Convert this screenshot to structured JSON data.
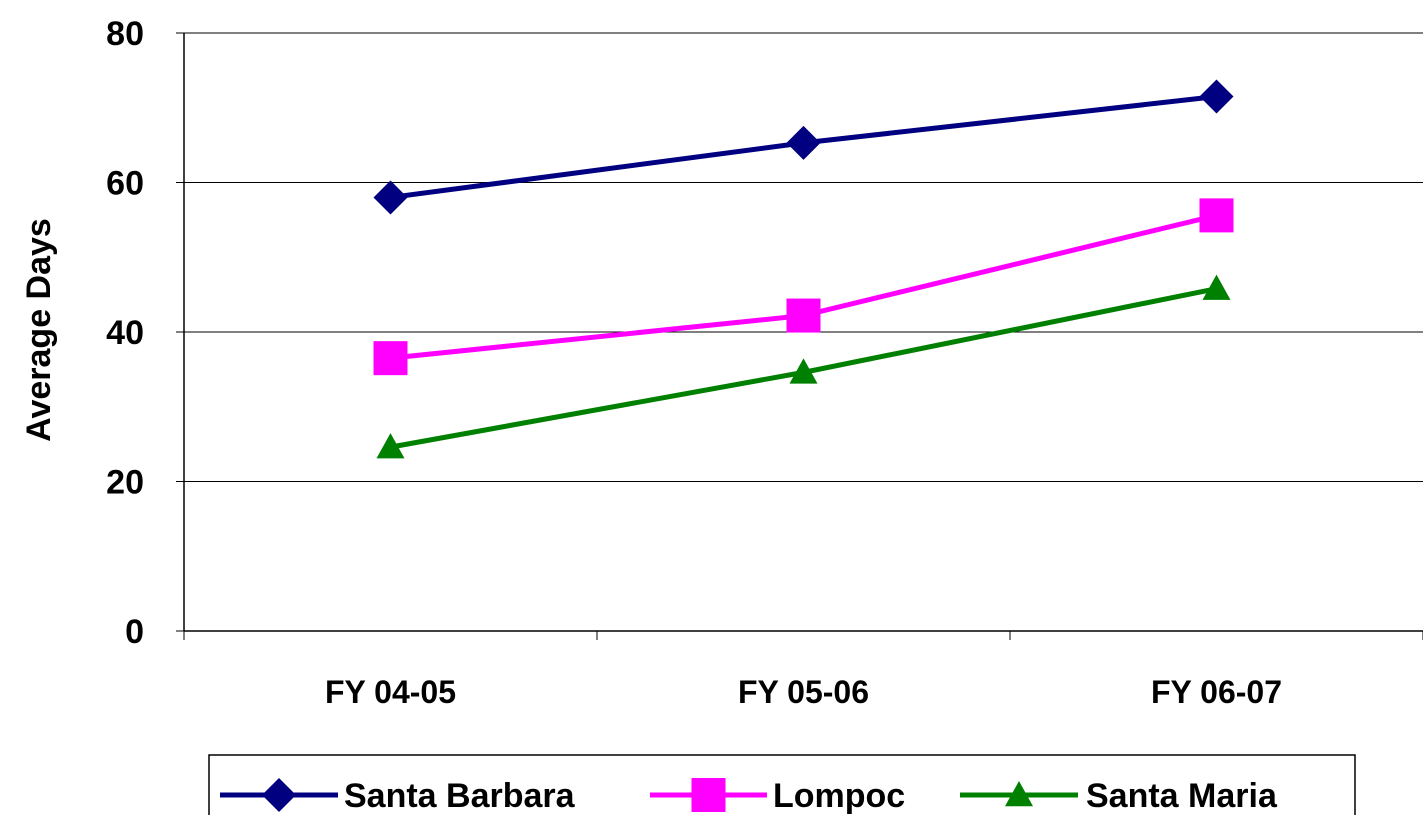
{
  "chart_data": {
    "type": "line",
    "title": "",
    "xlabel": "",
    "ylabel": "Average Days",
    "categories": [
      "FY 04-05",
      "FY 05-06",
      "FY 06-07"
    ],
    "ylim": [
      0,
      80
    ],
    "yticks": [
      0,
      20,
      40,
      60,
      80
    ],
    "grid": true,
    "legend_position": "bottom",
    "series": [
      {
        "name": "Santa Barbara",
        "values": [
          58,
          65.3,
          71.5
        ],
        "color": "#000080",
        "marker": "diamond"
      },
      {
        "name": "Lompoc",
        "values": [
          36.5,
          42.2,
          55.6
        ],
        "color": "#ff00ff",
        "marker": "square"
      },
      {
        "name": "Santa Maria",
        "values": [
          24.6,
          34.6,
          45.8
        ],
        "color": "#008000",
        "marker": "triangle"
      }
    ]
  }
}
